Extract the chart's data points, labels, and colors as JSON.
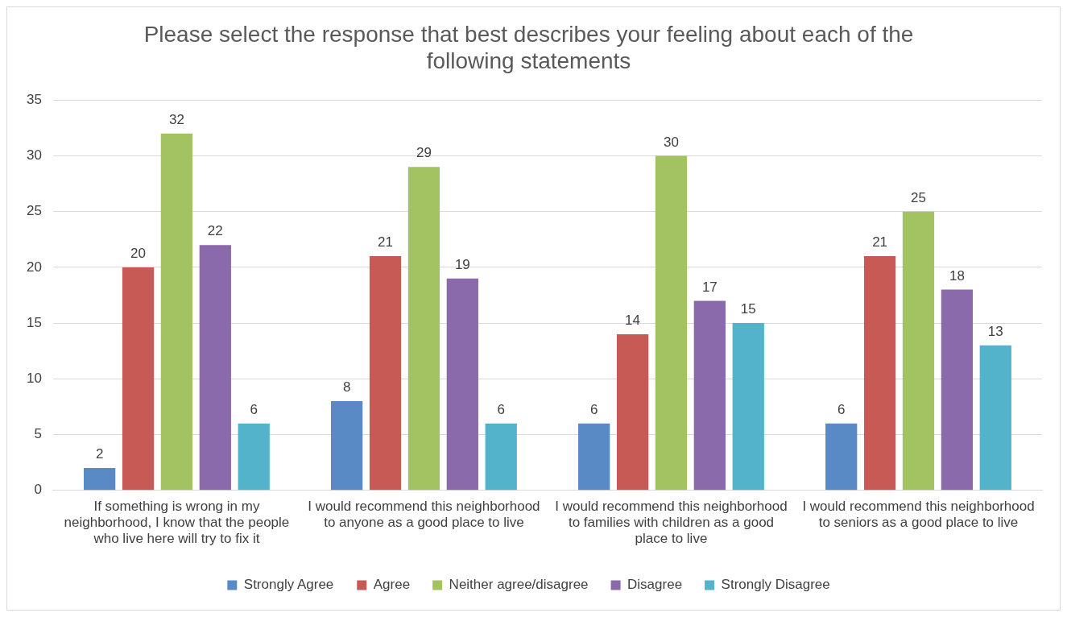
{
  "chart_data": {
    "type": "bar",
    "title": "Please select the response that best describes your feeling about each of the following statements",
    "categories": [
      "If something is wrong in my neighborhood, I know that the people who live here will try to fix it",
      "I would recommend this neighborhood to anyone as a good place to live",
      "I would recommend this neighborhood to families with children as a good place to live",
      "I would recommend this neighborhood to seniors as a good place to live"
    ],
    "series": [
      {
        "name": "Strongly Agree",
        "color": "#5a8ac6",
        "values": [
          2,
          8,
          6,
          6
        ]
      },
      {
        "name": "Agree",
        "color": "#c85a56",
        "values": [
          20,
          21,
          14,
          21
        ]
      },
      {
        "name": "Neither agree/disagree",
        "color": "#a3c262",
        "values": [
          32,
          29,
          30,
          25
        ]
      },
      {
        "name": "Disagree",
        "color": "#8b6aab",
        "values": [
          22,
          19,
          17,
          18
        ]
      },
      {
        "name": "Strongly Disagree",
        "color": "#52b3cb",
        "values": [
          6,
          6,
          15,
          13
        ]
      }
    ],
    "ylim": [
      0,
      35
    ],
    "yticks": [
      0,
      5,
      10,
      15,
      20,
      25,
      30,
      35
    ],
    "grid": "y",
    "legend": "bottom",
    "data_labels": true
  }
}
